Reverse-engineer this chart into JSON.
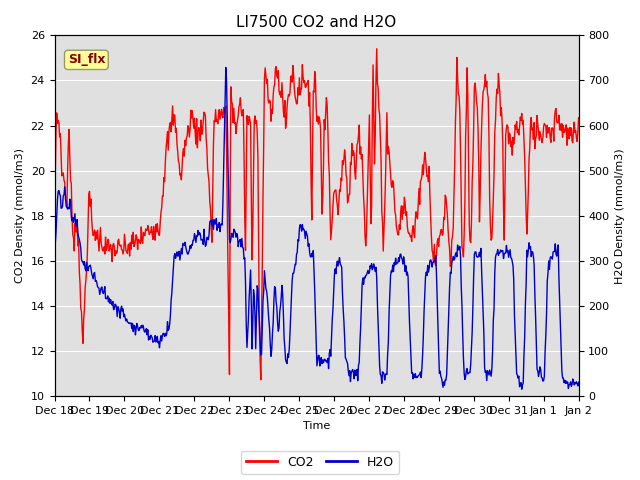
{
  "title": "LI7500 CO2 and H2O",
  "xlabel": "Time",
  "ylabel_left": "CO2 Density (mmol/m3)",
  "ylabel_right": "H2O Density (mmol/m3)",
  "co2_color": "#FF0000",
  "h2o_color": "#0000CC",
  "ylim_left": [
    10,
    26
  ],
  "ylim_right": [
    0,
    800
  ],
  "xtick_labels": [
    "Dec 18",
    "Dec 19",
    "Dec 20",
    "Dec 21",
    "Dec 22",
    "Dec 23",
    "Dec 24",
    "Dec 25",
    "Dec 26",
    "Dec 27",
    "Dec 28",
    "Dec 29",
    "Dec 30",
    "Dec 31",
    "Jan 1",
    "Jan 2"
  ],
  "annotation_text": "SI_flx",
  "annotation_color": "#8B0000",
  "annotation_bg": "#FFFF99",
  "bg_color": "#E0E0E0",
  "linewidth": 1.0,
  "title_fontsize": 11,
  "legend_fontsize": 9,
  "axis_fontsize": 8,
  "tick_fontsize": 8,
  "figsize": [
    6.4,
    4.8
  ],
  "dpi": 100
}
